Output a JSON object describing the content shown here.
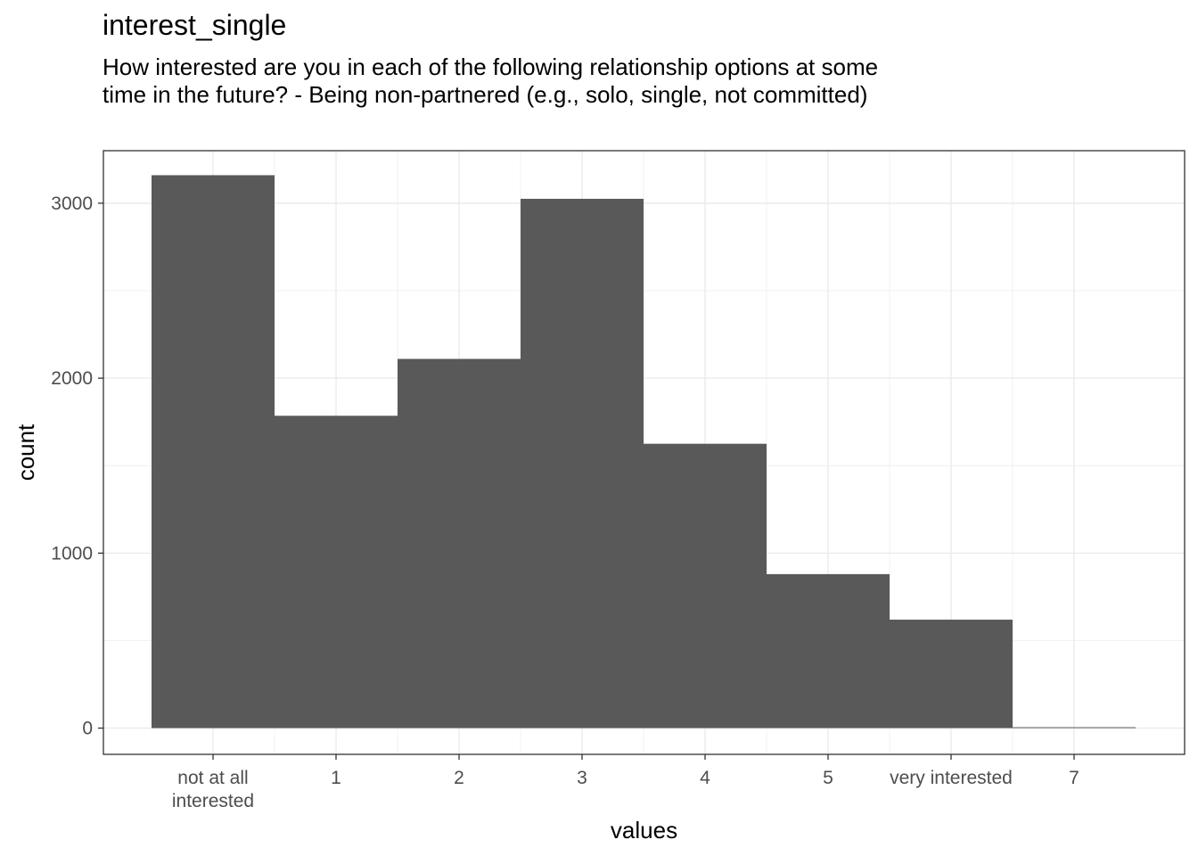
{
  "chart_data": {
    "type": "bar",
    "title": "interest_single",
    "subtitle": "How interested are you in each of the following relationship options at some time in the future? - Being non-partnered (e.g., solo, single, not committed)",
    "xlabel": "values",
    "ylabel": "count",
    "categories": [
      "not at all interested",
      "1",
      "2",
      "3",
      "4",
      "5",
      "very interested",
      "7"
    ],
    "x_tick_labels": [
      [
        "not at all",
        "interested"
      ],
      [
        "1"
      ],
      [
        "2"
      ],
      [
        "3"
      ],
      [
        "4"
      ],
      [
        "5"
      ],
      [
        "very interested"
      ],
      [
        "7"
      ]
    ],
    "values": [
      3160,
      1785,
      2110,
      3025,
      1625,
      880,
      620,
      5
    ],
    "y_ticks": [
      0,
      1000,
      2000,
      3000
    ],
    "ylim": [
      -150,
      3300
    ],
    "grid": true,
    "legend": "none",
    "bar_color": "#595959",
    "grid_color": "#ebebeb",
    "panel_border_color": "#333333"
  }
}
